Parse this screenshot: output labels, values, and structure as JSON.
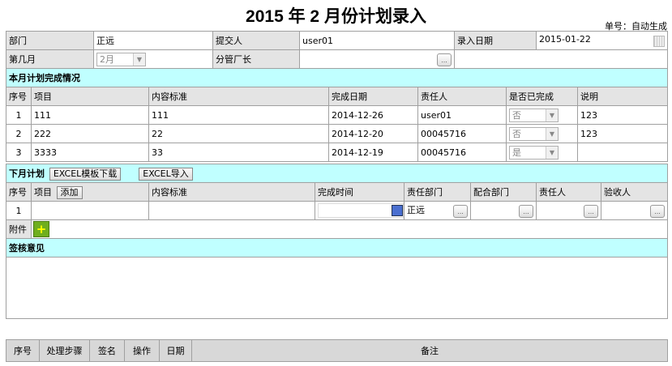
{
  "title": "2015 年 2 月份计划录入",
  "doc_no": "单号：自动生成",
  "form": {
    "dept_label": "部门",
    "dept": "正远",
    "submitter_label": "提交人",
    "submitter": "user01",
    "entry_date_label": "录入日期",
    "entry_date": "2015-01-22",
    "month_label": "第几月",
    "month": "2月",
    "manager_label": "分管厂长",
    "manager": ""
  },
  "this_month": {
    "title": "本月计划完成情况",
    "headers": [
      "序号",
      "项目",
      "内容标准",
      "完成日期",
      "责任人",
      "是否已完成",
      "说明"
    ],
    "rows": [
      {
        "no": "1",
        "item": "111",
        "content": "111",
        "date": "2014-12-26",
        "owner": "user01",
        "done": "否",
        "note": "123"
      },
      {
        "no": "2",
        "item": "222",
        "content": "22",
        "date": "2014-12-20",
        "owner": "00045716",
        "done": "否",
        "note": "123"
      },
      {
        "no": "3",
        "item": "3333",
        "content": "33",
        "date": "2014-12-19",
        "owner": "00045716",
        "done": "是",
        "note": ""
      }
    ]
  },
  "next_month": {
    "title": "下月计划",
    "excel_template": "EXCEL模板下载",
    "excel_import": "EXCEL导入",
    "headers": [
      "序号",
      "项目",
      "内容标准",
      "完成时间",
      "责任部门",
      "配合部门",
      "责任人",
      "验收人"
    ],
    "add_label": "添加",
    "rows": [
      {
        "no": "1",
        "item": "",
        "content": "",
        "date": "",
        "dept": "正远",
        "coop": "",
        "owner": "",
        "acceptor": ""
      }
    ]
  },
  "attachment_label": "附件",
  "review": {
    "title": "签核意见",
    "text": ""
  },
  "log_headers": [
    "序号",
    "处理步骤",
    "签名",
    "操作",
    "日期",
    "备注"
  ],
  "colors": {
    "section": "#c0ffff",
    "label": "#e4e4e4"
  }
}
